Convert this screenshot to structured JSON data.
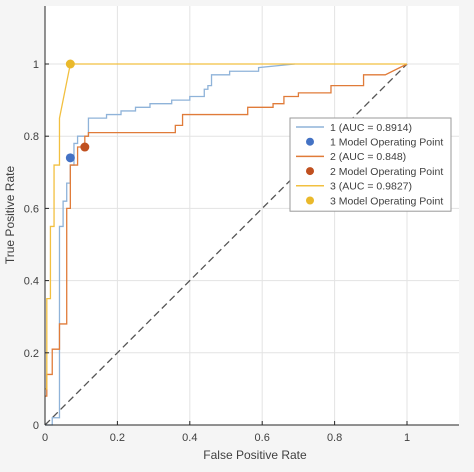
{
  "chart_data": {
    "type": "line",
    "xlabel": "False Positive Rate",
    "ylabel": "True Positive Rate",
    "xlim": [
      0,
      1.14
    ],
    "ylim": [
      0,
      1.16
    ],
    "xticks": [
      0,
      0.2,
      0.4,
      0.6,
      0.8,
      1
    ],
    "yticks": [
      0,
      0.2,
      0.4,
      0.6,
      0.8,
      1
    ],
    "xtick_labels": [
      "0",
      "0.2",
      "0.4",
      "0.6",
      "0.8",
      "1"
    ],
    "ytick_labels": [
      "0",
      "0.2",
      "0.4",
      "0.6",
      "0.8",
      "1"
    ],
    "grid": true,
    "legend_position": "right",
    "series": [
      {
        "name": "1 (AUC = 0.8914)",
        "color": "#8fb3d9",
        "x": [
          0,
          0.02,
          0.02,
          0.04,
          0.04,
          0.05,
          0.05,
          0.06,
          0.06,
          0.07,
          0.07,
          0.08,
          0.08,
          0.09,
          0.09,
          0.12,
          0.12,
          0.17,
          0.17,
          0.21,
          0.21,
          0.25,
          0.25,
          0.29,
          0.29,
          0.35,
          0.35,
          0.4,
          0.4,
          0.44,
          0.44,
          0.45,
          0.45,
          0.46,
          0.46,
          0.51,
          0.51,
          0.59,
          0.59,
          0.69
        ],
        "y": [
          0,
          0,
          0.02,
          0.02,
          0.55,
          0.55,
          0.62,
          0.62,
          0.67,
          0.67,
          0.72,
          0.72,
          0.78,
          0.78,
          0.8,
          0.8,
          0.85,
          0.85,
          0.86,
          0.86,
          0.87,
          0.87,
          0.88,
          0.88,
          0.89,
          0.89,
          0.9,
          0.9,
          0.91,
          0.91,
          0.93,
          0.93,
          0.94,
          0.94,
          0.97,
          0.97,
          0.98,
          0.98,
          0.99,
          1.0
        ]
      },
      {
        "name": "1 Model Operating Point",
        "type": "point",
        "color": "#4472c4",
        "x": [
          0.07
        ],
        "y": [
          0.74
        ]
      },
      {
        "name": "2 (AUC = 0.848)",
        "color": "#e07b39",
        "x": [
          0,
          0.005,
          0.005,
          0.02,
          0.02,
          0.04,
          0.04,
          0.06,
          0.06,
          0.07,
          0.07,
          0.09,
          0.09,
          0.11,
          0.11,
          0.12,
          0.12,
          0.36,
          0.36,
          0.38,
          0.38,
          0.56,
          0.56,
          0.63,
          0.63,
          0.66,
          0.66,
          0.7,
          0.7,
          0.79,
          0.79,
          0.88,
          0.88,
          0.94,
          1.0
        ],
        "y": [
          0.08,
          0.08,
          0.14,
          0.14,
          0.21,
          0.21,
          0.28,
          0.28,
          0.6,
          0.6,
          0.72,
          0.72,
          0.77,
          0.77,
          0.8,
          0.8,
          0.81,
          0.81,
          0.83,
          0.83,
          0.86,
          0.86,
          0.88,
          0.88,
          0.89,
          0.89,
          0.91,
          0.91,
          0.92,
          0.92,
          0.94,
          0.94,
          0.97,
          0.97,
          1.0
        ]
      },
      {
        "name": "2 Model Operating Point",
        "type": "point",
        "color": "#c0501f",
        "x": [
          0.11
        ],
        "y": [
          0.77
        ]
      },
      {
        "name": "3 (AUC = 0.9827)",
        "color": "#f2c040",
        "x": [
          0,
          0.005,
          0.005,
          0.015,
          0.015,
          0.025,
          0.025,
          0.04,
          0.04,
          0.07,
          1.0
        ],
        "y": [
          0.1,
          0.1,
          0.35,
          0.35,
          0.55,
          0.55,
          0.72,
          0.72,
          0.85,
          1.0,
          1.0
        ]
      },
      {
        "name": "3 Model Operating Point",
        "type": "point",
        "color": "#eab92b",
        "x": [
          0.07
        ],
        "y": [
          1.0
        ]
      },
      {
        "name": "",
        "type": "reference",
        "color": "#555555",
        "x": [
          0,
          1
        ],
        "y": [
          0,
          1
        ]
      }
    ]
  }
}
